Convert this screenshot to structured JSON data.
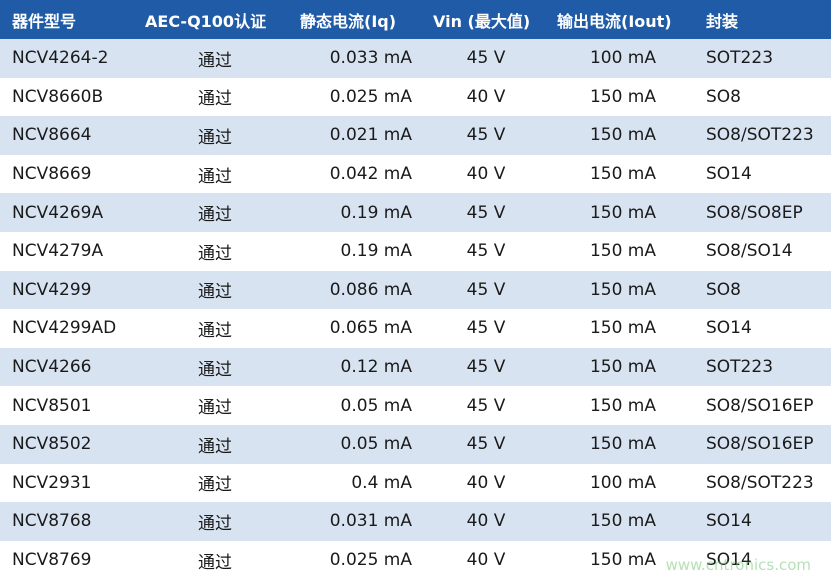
{
  "table": {
    "header": [
      "器件型号",
      "AEC-Q100认证",
      "静态电流(Iq)",
      "Vin (最大值)",
      "输出电流(Iout)",
      "封装"
    ],
    "rows": [
      [
        "NCV4264-2",
        "通过",
        "0.033 mA",
        "45 V",
        "100 mA",
        "SOT223"
      ],
      [
        "NCV8660B",
        "通过",
        "0.025 mA",
        "40 V",
        "150 mA",
        "SO8"
      ],
      [
        "NCV8664",
        "通过",
        "0.021 mA",
        "45 V",
        "150 mA",
        "SO8/SOT223"
      ],
      [
        "NCV8669",
        "通过",
        "0.042 mA",
        "40 V",
        "150 mA",
        "SO14"
      ],
      [
        "NCV4269A",
        "通过",
        "0.19 mA",
        "45 V",
        "150 mA",
        "SO8/SO8EP"
      ],
      [
        "NCV4279A",
        "通过",
        "0.19 mA",
        "45 V",
        "150 mA",
        "SO8/SO14"
      ],
      [
        "NCV4299",
        "通过",
        "0.086 mA",
        "45 V",
        "150 mA",
        "SO8"
      ],
      [
        "NCV4299AD",
        "通过",
        "0.065 mA",
        "45 V",
        "150 mA",
        "SO14"
      ],
      [
        "NCV4266",
        "通过",
        "0.12 mA",
        "45 V",
        "150 mA",
        "SOT223"
      ],
      [
        "NCV8501",
        "通过",
        "0.05 mA",
        "45 V",
        "150 mA",
        "SO8/SO16EP"
      ],
      [
        "NCV8502",
        "通过",
        "0.05 mA",
        "45 V",
        "150 mA",
        "SO8/SO16EP"
      ],
      [
        "NCV2931",
        "通过",
        "0.4 mA",
        "40 V",
        "100 mA",
        "SO8/SOT223"
      ],
      [
        "NCV8768",
        "通过",
        "0.031 mA",
        "40 V",
        "150 mA",
        "SO14"
      ],
      [
        "NCV8769",
        "通过",
        "0.025 mA",
        "40 V",
        "150 mA",
        "SO14"
      ]
    ]
  },
  "watermark": "www.cntronics.com"
}
